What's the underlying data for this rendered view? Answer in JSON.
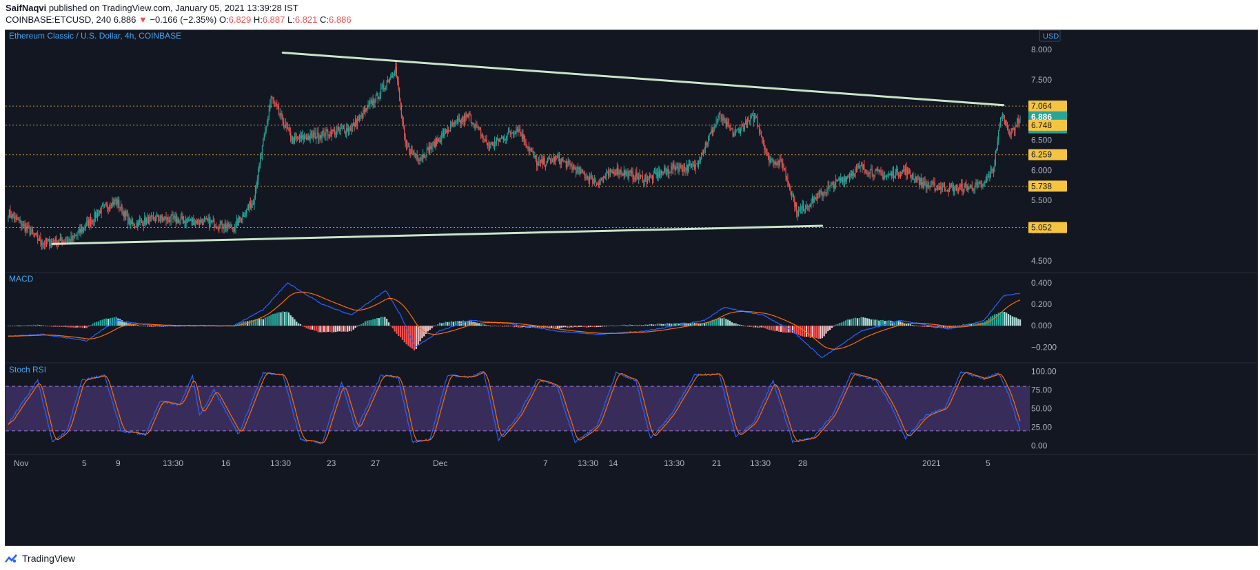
{
  "header": {
    "author": "SaifNaqvi",
    "published_text": "published on TradingView.com, January 05, 2021 13:39:28 IST",
    "symbol": "COINBASE:ETCUSD, 240",
    "last": "6.886",
    "change_arrow": "▼",
    "change": "−0.166 (−2.35%)",
    "o_label": "O:",
    "o": "6.829",
    "h_label": "H:",
    "h": "6.887",
    "l_label": "L:",
    "l": "6.821",
    "c_label": "C:",
    "c": "6.886"
  },
  "footer": {
    "logo_icon": "tradingview-logo-icon",
    "brand": "TradingView"
  },
  "colors": {
    "up": "#26a69a",
    "down": "#ef5350",
    "trend": "#c8e6c9",
    "level": "#f5c542",
    "macd": "#2962ff",
    "signal": "#ff6d00",
    "stoch_k": "#2962ff",
    "stoch_d": "#ff6d00",
    "band": "#7e57c2",
    "text": "#b2b5be",
    "title": "#42a5f5"
  },
  "chart_data": [
    {
      "type": "candlestick",
      "title": "Ethereum Classic / U.S. Dollar, 4h, COINBASE",
      "currency": "USD",
      "ylim": [
        4.35,
        8.15
      ],
      "y_ticks": [
        "8.000",
        "7.500",
        "7.000",
        "6.500",
        "6.000",
        "5.500",
        "5.000",
        "4.500"
      ],
      "x_ticks": [
        "Nov",
        "5",
        "9",
        "13:30",
        "16",
        "13:30",
        "23",
        "27",
        "Dec",
        "7",
        "13:30",
        "14",
        "13:30",
        "21",
        "13:30",
        "28",
        "2021",
        "5"
      ],
      "anchors": [
        [
          0,
          5.3
        ],
        [
          35,
          4.8
        ],
        [
          65,
          4.85
        ],
        [
          95,
          5.35
        ],
        [
          110,
          5.5
        ],
        [
          125,
          5.1
        ],
        [
          150,
          5.2
        ],
        [
          200,
          5.15
        ],
        [
          230,
          5.05
        ],
        [
          250,
          5.5
        ],
        [
          268,
          7.2
        ],
        [
          290,
          6.5
        ],
        [
          320,
          6.6
        ],
        [
          350,
          6.7
        ],
        [
          380,
          7.3
        ],
        [
          395,
          7.7
        ],
        [
          405,
          6.4
        ],
        [
          420,
          6.2
        ],
        [
          450,
          6.7
        ],
        [
          470,
          6.9
        ],
        [
          490,
          6.4
        ],
        [
          520,
          6.7
        ],
        [
          540,
          6.1
        ],
        [
          560,
          6.2
        ],
        [
          580,
          6.0
        ],
        [
          600,
          5.8
        ],
        [
          620,
          6.0
        ],
        [
          650,
          5.85
        ],
        [
          680,
          6.05
        ],
        [
          700,
          6.05
        ],
        [
          725,
          6.9
        ],
        [
          740,
          6.6
        ],
        [
          762,
          6.9
        ],
        [
          775,
          6.2
        ],
        [
          790,
          6.1
        ],
        [
          805,
          5.3
        ],
        [
          820,
          5.5
        ],
        [
          840,
          5.75
        ],
        [
          870,
          6.05
        ],
        [
          895,
          5.9
        ],
        [
          915,
          6.0
        ],
        [
          935,
          5.75
        ],
        [
          965,
          5.7
        ],
        [
          995,
          5.75
        ],
        [
          1005,
          6.05
        ],
        [
          1013,
          6.95
        ],
        [
          1022,
          6.6
        ],
        [
          1032,
          6.886
        ]
      ],
      "price_labels": [
        {
          "label": "7.064",
          "value": 7.064,
          "kind": "level"
        },
        {
          "label": "6.886",
          "value": 6.886,
          "kind": "last"
        },
        {
          "label": "03:50:34",
          "value": 6.886,
          "kind": "countdown"
        },
        {
          "label": "6.748",
          "value": 6.748,
          "kind": "level"
        },
        {
          "label": "6.259",
          "value": 6.259,
          "kind": "level"
        },
        {
          "label": "5.738",
          "value": 5.738,
          "kind": "level"
        },
        {
          "label": "5.052",
          "value": 5.052,
          "kind": "level"
        }
      ],
      "trendlines": [
        {
          "from": [
            280,
            7.95
          ],
          "to": [
            1015,
            7.08
          ]
        },
        {
          "from": [
            45,
            4.78
          ],
          "to": [
            830,
            5.08
          ]
        }
      ]
    },
    {
      "type": "line",
      "title": "MACD",
      "ylim": [
        -0.32,
        0.47
      ],
      "y_ticks": [
        "0.400",
        "0.200",
        "0.000",
        "−0.200"
      ],
      "macd_anchors": [
        [
          0,
          -0.1
        ],
        [
          35,
          -0.08
        ],
        [
          80,
          -0.14
        ],
        [
          110,
          0.05
        ],
        [
          150,
          0.0
        ],
        [
          230,
          0.0
        ],
        [
          260,
          0.15
        ],
        [
          285,
          0.4
        ],
        [
          320,
          0.2
        ],
        [
          350,
          0.1
        ],
        [
          385,
          0.33
        ],
        [
          400,
          0.1
        ],
        [
          415,
          -0.2
        ],
        [
          440,
          -0.05
        ],
        [
          470,
          0.05
        ],
        [
          510,
          0.02
        ],
        [
          560,
          -0.05
        ],
        [
          600,
          -0.08
        ],
        [
          650,
          -0.05
        ],
        [
          710,
          0.05
        ],
        [
          730,
          0.17
        ],
        [
          770,
          0.1
        ],
        [
          800,
          -0.05
        ],
        [
          830,
          -0.3
        ],
        [
          870,
          -0.05
        ],
        [
          910,
          0.05
        ],
        [
          960,
          -0.03
        ],
        [
          995,
          0.05
        ],
        [
          1015,
          0.28
        ],
        [
          1032,
          0.3
        ]
      ]
    },
    {
      "type": "line",
      "title": "Stoch RSI",
      "ylim": [
        -8,
        108
      ],
      "band": [
        20,
        80
      ],
      "y_ticks": [
        "100.00",
        "75.00",
        "50.00",
        "25.00",
        "0.00"
      ],
      "k_anchors": [
        [
          0,
          30
        ],
        [
          30,
          88
        ],
        [
          45,
          5
        ],
        [
          60,
          20
        ],
        [
          75,
          88
        ],
        [
          98,
          95
        ],
        [
          115,
          20
        ],
        [
          140,
          15
        ],
        [
          155,
          60
        ],
        [
          175,
          55
        ],
        [
          188,
          95
        ],
        [
          195,
          40
        ],
        [
          210,
          75
        ],
        [
          235,
          15
        ],
        [
          260,
          98
        ],
        [
          280,
          96
        ],
        [
          298,
          8
        ],
        [
          320,
          3
        ],
        [
          340,
          85
        ],
        [
          355,
          20
        ],
        [
          380,
          95
        ],
        [
          398,
          92
        ],
        [
          412,
          5
        ],
        [
          430,
          8
        ],
        [
          448,
          95
        ],
        [
          470,
          92
        ],
        [
          485,
          100
        ],
        [
          500,
          8
        ],
        [
          520,
          40
        ],
        [
          540,
          90
        ],
        [
          560,
          80
        ],
        [
          578,
          5
        ],
        [
          600,
          25
        ],
        [
          620,
          98
        ],
        [
          640,
          88
        ],
        [
          655,
          10
        ],
        [
          675,
          40
        ],
        [
          700,
          95
        ],
        [
          725,
          97
        ],
        [
          742,
          12
        ],
        [
          760,
          30
        ],
        [
          780,
          88
        ],
        [
          800,
          5
        ],
        [
          820,
          10
        ],
        [
          840,
          40
        ],
        [
          860,
          98
        ],
        [
          885,
          88
        ],
        [
          900,
          55
        ],
        [
          915,
          10
        ],
        [
          935,
          40
        ],
        [
          955,
          50
        ],
        [
          972,
          100
        ],
        [
          995,
          90
        ],
        [
          1010,
          98
        ],
        [
          1020,
          70
        ],
        [
          1032,
          20
        ]
      ]
    }
  ]
}
